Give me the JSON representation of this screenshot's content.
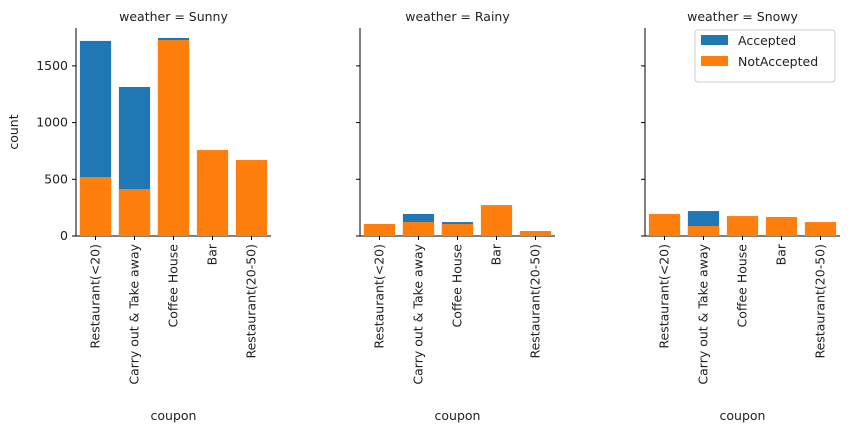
{
  "chart_data": {
    "type": "bar",
    "panels": [
      "weather = Sunny",
      "weather = Rainy",
      "weather = Snowy"
    ],
    "categories": [
      "Restaurant(<20)",
      "Carry out & Take away",
      "Coffee House",
      "Bar",
      "Restaurant(20-50)"
    ],
    "series": [
      {
        "name": "Accepted",
        "color": "#1f77b4",
        "values": [
          [
            1720,
            1314,
            1746,
            null,
            null
          ],
          [
            null,
            194,
            123,
            null,
            null
          ],
          [
            null,
            220,
            null,
            null,
            null
          ]
        ]
      },
      {
        "name": "NotAccepted",
        "color": "#ff7f0e",
        "values": [
          [
            520,
            414,
            1728,
            758,
            670
          ],
          [
            106,
            123,
            106,
            273,
            44
          ],
          [
            194,
            88,
            176,
            168,
            123
          ]
        ]
      }
    ],
    "xlabel": "coupon",
    "ylabel": "count",
    "ylim": [
      0,
      1834
    ],
    "yticks": [
      0,
      500,
      1000,
      1500
    ]
  }
}
